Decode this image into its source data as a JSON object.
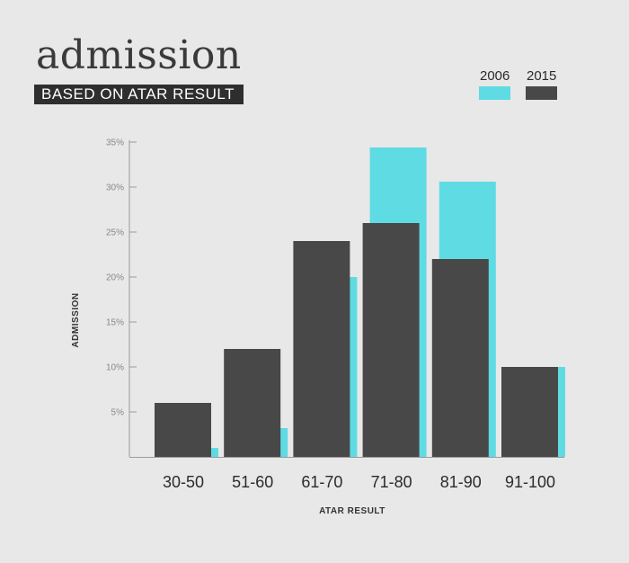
{
  "header": {
    "title": "admission",
    "subtitle": "BASED ON ATAR RESULT"
  },
  "colors": {
    "s2006": "#5fdbe3",
    "s2015": "#484848",
    "axis": "#9a9a9a",
    "background": "#e8e8e8"
  },
  "chart_data": {
    "type": "bar",
    "title": "admission",
    "subtitle": "BASED ON ATAR RESULT",
    "xlabel": "ATAR RESULT",
    "ylabel": "ADMISSION",
    "categories": [
      "30-50",
      "51-60",
      "61-70",
      "71-80",
      "81-90",
      "91-100"
    ],
    "series": [
      {
        "name": "2006",
        "values": [
          1,
          3.2,
          20,
          34.4,
          30.6,
          10
        ]
      },
      {
        "name": "2015",
        "values": [
          6,
          12,
          24,
          26,
          22,
          10
        ]
      }
    ],
    "ylim": [
      0,
      35
    ],
    "yticks": [
      5,
      10,
      15,
      20,
      25,
      30,
      35
    ],
    "ytick_labels": [
      "5%",
      "10%",
      "15%",
      "20%",
      "25%",
      "30%",
      "35%"
    ],
    "legend": "top-right",
    "grid": false
  }
}
